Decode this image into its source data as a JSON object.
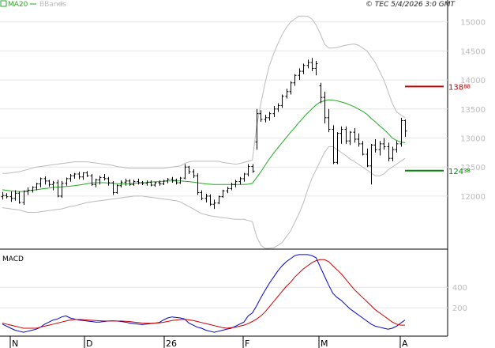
{
  "legend": {
    "ma_label": "MA20",
    "bb_label": "BBands",
    "ma_color": "#22aa22",
    "bb_color": "#bbbbbb"
  },
  "copyright": "© TEC 5/4/2026 3:0 GMT",
  "macd_label": "MACD",
  "chart_data": [
    {
      "type": "candlestick",
      "y_ticks": [
        "12000",
        "12500",
        "13000",
        "13500",
        "14000",
        "14500",
        "15000"
      ],
      "ylim": [
        11100,
        15350
      ],
      "x_ticks": [
        "N",
        "D",
        "26",
        "F",
        "M",
        "A"
      ],
      "levels": [
        {
          "value": 13888,
          "label": "138",
          "label_small": "88",
          "color": "#bb0000"
        },
        {
          "value": 12438,
          "label": "124",
          "label_small": "38",
          "color": "#008800"
        }
      ],
      "ohlc": [
        [
          11990,
          12070,
          11940,
          12010
        ],
        [
          12010,
          12050,
          11960,
          11990
        ],
        [
          11990,
          12080,
          11900,
          11960
        ],
        [
          11960,
          12100,
          11920,
          12050
        ],
        [
          12050,
          12080,
          11870,
          11890
        ],
        [
          11890,
          12100,
          11850,
          12080
        ],
        [
          12080,
          12150,
          12020,
          12100
        ],
        [
          12100,
          12170,
          12060,
          12150
        ],
        [
          12150,
          12230,
          12100,
          12210
        ],
        [
          12210,
          12320,
          12150,
          12300
        ],
        [
          12300,
          12340,
          12200,
          12260
        ],
        [
          12260,
          12280,
          12160,
          12200
        ],
        [
          12200,
          12260,
          12100,
          12230
        ],
        [
          12230,
          12280,
          11980,
          12000
        ],
        [
          12000,
          12260,
          11970,
          12220
        ],
        [
          12220,
          12320,
          12180,
          12300
        ],
        [
          12300,
          12380,
          12250,
          12350
        ],
        [
          12350,
          12400,
          12300,
          12380
        ],
        [
          12380,
          12420,
          12290,
          12330
        ],
        [
          12330,
          12410,
          12280,
          12400
        ],
        [
          12400,
          12430,
          12330,
          12350
        ],
        [
          12350,
          12380,
          12180,
          12200
        ],
        [
          12200,
          12300,
          12150,
          12280
        ],
        [
          12280,
          12350,
          12200,
          12320
        ],
        [
          12320,
          12380,
          12270,
          12300
        ],
        [
          12300,
          12330,
          12180,
          12230
        ],
        [
          12230,
          12260,
          12020,
          12060
        ],
        [
          12060,
          12200,
          12040,
          12180
        ],
        [
          12180,
          12270,
          12150,
          12240
        ],
        [
          12240,
          12300,
          12180,
          12260
        ],
        [
          12260,
          12290,
          12180,
          12200
        ],
        [
          12200,
          12280,
          12180,
          12250
        ],
        [
          12250,
          12300,
          12200,
          12230
        ],
        [
          12230,
          12260,
          12190,
          12220
        ],
        [
          12220,
          12270,
          12180,
          12240
        ],
        [
          12240,
          12270,
          12170,
          12190
        ],
        [
          12190,
          12250,
          12160,
          12230
        ],
        [
          12230,
          12270,
          12180,
          12210
        ],
        [
          12210,
          12280,
          12190,
          12260
        ],
        [
          12260,
          12310,
          12220,
          12290
        ],
        [
          12290,
          12330,
          12230,
          12270
        ],
        [
          12270,
          12300,
          12200,
          12230
        ],
        [
          12230,
          12330,
          12210,
          12310
        ],
        [
          12310,
          12550,
          12290,
          12500
        ],
        [
          12500,
          12520,
          12380,
          12420
        ],
        [
          12420,
          12460,
          12310,
          12350
        ],
        [
          12350,
          12390,
          12020,
          12060
        ],
        [
          12060,
          12100,
          11930,
          11960
        ],
        [
          11960,
          12040,
          11890,
          12000
        ],
        [
          12000,
          12030,
          11830,
          11860
        ],
        [
          11860,
          11940,
          11780,
          11880
        ],
        [
          11880,
          12010,
          11860,
          11990
        ],
        [
          11990,
          12110,
          11970,
          12090
        ],
        [
          12090,
          12160,
          12050,
          12130
        ],
        [
          12130,
          12230,
          12100,
          12200
        ],
        [
          12200,
          12280,
          12150,
          12250
        ],
        [
          12250,
          12330,
          12200,
          12300
        ],
        [
          12300,
          12400,
          12250,
          12380
        ],
        [
          12380,
          12550,
          12340,
          12510
        ],
        [
          12510,
          12550,
          12400,
          12430
        ],
        [
          12930,
          13500,
          12800,
          13420
        ],
        [
          13420,
          13480,
          13280,
          13320
        ],
        [
          13320,
          13400,
          13270,
          13350
        ],
        [
          13350,
          13450,
          13300,
          13420
        ],
        [
          13420,
          13550,
          13360,
          13500
        ],
        [
          13500,
          13600,
          13450,
          13560
        ],
        [
          13560,
          13750,
          13520,
          13720
        ],
        [
          13720,
          13850,
          13680,
          13800
        ],
        [
          13800,
          13980,
          13750,
          13950
        ],
        [
          13950,
          14100,
          13900,
          14080
        ],
        [
          14080,
          14200,
          14000,
          14150
        ],
        [
          14150,
          14280,
          14100,
          14250
        ],
        [
          14250,
          14350,
          14200,
          14300
        ],
        [
          14300,
          14380,
          14150,
          14200
        ],
        [
          14200,
          14330,
          14080,
          14280
        ],
        [
          13900,
          13950,
          13600,
          13700
        ],
        [
          13700,
          13800,
          13250,
          13350
        ],
        [
          13350,
          13500,
          13100,
          13150
        ],
        [
          13150,
          13220,
          12550,
          12580
        ],
        [
          12580,
          13100,
          12550,
          13080
        ],
        [
          13080,
          13200,
          12900,
          13150
        ],
        [
          13150,
          13200,
          12900,
          12950
        ],
        [
          12950,
          13120,
          12880,
          13100
        ],
        [
          13100,
          13170,
          12920,
          12980
        ],
        [
          12980,
          13080,
          12850,
          12900
        ],
        [
          12900,
          12950,
          12700,
          12720
        ],
        [
          12720,
          12820,
          12500,
          12520
        ],
        [
          12520,
          12900,
          12200,
          12880
        ],
        [
          12880,
          12980,
          12750,
          12800
        ],
        [
          12800,
          12950,
          12700,
          12900
        ],
        [
          12900,
          13000,
          12800,
          12850
        ],
        [
          12850,
          12920,
          12600,
          12650
        ],
        [
          12650,
          12850,
          12600,
          12800
        ],
        [
          12800,
          12950,
          12750,
          12900
        ],
        [
          12900,
          13350,
          12850,
          13300
        ],
        [
          13300,
          13320,
          13020,
          13120
        ]
      ],
      "ma20": [
        12110,
        12100,
        12090,
        12085,
        12080,
        12080,
        12090,
        12100,
        12110,
        12120,
        12130,
        12140,
        12150,
        12155,
        12160,
        12165,
        12170,
        12180,
        12190,
        12200,
        12215,
        12225,
        12230,
        12230,
        12230,
        12225,
        12220,
        12215,
        12210,
        12210,
        12215,
        12220,
        12225,
        12230,
        12235,
        12240,
        12245,
        12250,
        12255,
        12260,
        12262,
        12262,
        12260,
        12255,
        12250,
        12240,
        12230,
        12220,
        12210,
        12205,
        12200,
        12200,
        12200,
        12200,
        12200,
        12200,
        12200,
        12200,
        12205,
        12220,
        12320,
        12420,
        12530,
        12640,
        12740,
        12830,
        12920,
        13010,
        13100,
        13180,
        13270,
        13350,
        13430,
        13500,
        13570,
        13620,
        13640,
        13660,
        13650,
        13640,
        13620,
        13600,
        13570,
        13540,
        13500,
        13460,
        13410,
        13340,
        13280,
        13210,
        13150,
        13080,
        13000,
        12960,
        12930,
        12920
      ],
      "bb_upper": [
        12390,
        12390,
        12400,
        12410,
        12420,
        12440,
        12460,
        12480,
        12500,
        12510,
        12520,
        12530,
        12540,
        12550,
        12560,
        12570,
        12580,
        12590,
        12590,
        12590,
        12590,
        12580,
        12570,
        12560,
        12550,
        12540,
        12530,
        12510,
        12500,
        12490,
        12480,
        12480,
        12480,
        12480,
        12480,
        12480,
        12480,
        12480,
        12480,
        12490,
        12500,
        12510,
        12520,
        12560,
        12590,
        12600,
        12600,
        12600,
        12600,
        12600,
        12600,
        12600,
        12580,
        12570,
        12560,
        12550,
        12560,
        12580,
        12600,
        12620,
        13200,
        13600,
        13950,
        14250,
        14450,
        14620,
        14780,
        14900,
        15000,
        15050,
        15100,
        15100,
        15100,
        15050,
        14950,
        14800,
        14620,
        14550,
        14550,
        14560,
        14580,
        14600,
        14610,
        14620,
        14600,
        14550,
        14500,
        14400,
        14300,
        14150,
        14000,
        13800,
        13600,
        13450,
        13400,
        13350
      ],
      "bb_lower": [
        11800,
        11790,
        11780,
        11770,
        11760,
        11740,
        11720,
        11720,
        11720,
        11730,
        11740,
        11750,
        11760,
        11770,
        11780,
        11800,
        11820,
        11830,
        11850,
        11870,
        11890,
        11900,
        11910,
        11920,
        11930,
        11940,
        11950,
        11960,
        11970,
        11980,
        11990,
        12000,
        12000,
        12000,
        11990,
        11980,
        11970,
        11960,
        11950,
        11940,
        11930,
        11920,
        11900,
        11860,
        11820,
        11780,
        11740,
        11700,
        11680,
        11660,
        11650,
        11640,
        11630,
        11620,
        11610,
        11600,
        11600,
        11600,
        11580,
        11560,
        11300,
        11150,
        11100,
        11100,
        11110,
        11150,
        11200,
        11300,
        11400,
        11550,
        11700,
        11880,
        12100,
        12300,
        12450,
        12600,
        12750,
        12850,
        12850,
        12800,
        12750,
        12700,
        12640,
        12600,
        12550,
        12500,
        12450,
        12400,
        12350,
        12350,
        12380,
        12450,
        12500,
        12550,
        12600,
        12650
      ]
    },
    {
      "type": "line",
      "name": "MACD",
      "y_ticks": [
        "200",
        "400"
      ],
      "ylim": [
        -70,
        750
      ],
      "series": [
        {
          "color": "#0000cc",
          "values": [
            40,
            20,
            0,
            -20,
            -30,
            -40,
            -30,
            -20,
            -10,
            10,
            40,
            60,
            80,
            90,
            110,
            120,
            100,
            90,
            80,
            75,
            70,
            65,
            60,
            60,
            65,
            70,
            72,
            70,
            65,
            60,
            50,
            45,
            40,
            35,
            40,
            45,
            50,
            55,
            80,
            100,
            110,
            105,
            100,
            90,
            50,
            30,
            10,
            0,
            -20,
            -30,
            -40,
            -30,
            -20,
            -10,
            0,
            20,
            40,
            60,
            120,
            150,
            220,
            300,
            370,
            440,
            500,
            560,
            610,
            650,
            680,
            710,
            720,
            720,
            720,
            710,
            690,
            600,
            510,
            420,
            340,
            300,
            270,
            230,
            190,
            160,
            130,
            100,
            70,
            40,
            20,
            10,
            0,
            -10,
            0,
            20,
            50,
            80
          ]
        },
        {
          "color": "#cc0000",
          "values": [
            50,
            40,
            30,
            20,
            10,
            0,
            0,
            0,
            0,
            10,
            20,
            30,
            40,
            50,
            60,
            70,
            80,
            85,
            85,
            85,
            80,
            78,
            75,
            72,
            70,
            70,
            70,
            70,
            70,
            68,
            65,
            60,
            55,
            50,
            48,
            48,
            50,
            52,
            58,
            65,
            75,
            80,
            85,
            87,
            82,
            75,
            65,
            55,
            45,
            35,
            25,
            15,
            5,
            0,
            5,
            10,
            20,
            30,
            45,
            65,
            90,
            120,
            160,
            210,
            260,
            310,
            360,
            410,
            450,
            500,
            540,
            580,
            610,
            640,
            660,
            670,
            670,
            650,
            610,
            570,
            530,
            480,
            430,
            380,
            340,
            300,
            260,
            220,
            180,
            150,
            120,
            90,
            60,
            40,
            30,
            30
          ]
        }
      ]
    }
  ]
}
